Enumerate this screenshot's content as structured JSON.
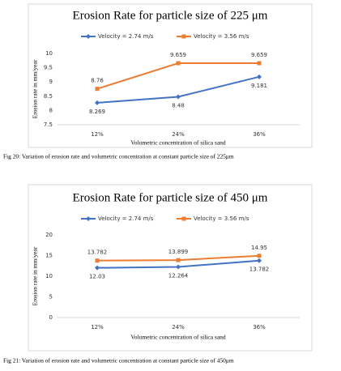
{
  "chart_data": [
    {
      "type": "line",
      "title": "Erosion Rate for particle size of 225 μm",
      "y_label": "Erosion rate in mm/year",
      "x_label": "Volumetric concentration of silica sand",
      "categories": [
        "12%",
        "24%",
        "36%"
      ],
      "series": [
        {
          "name": "Velocity = 2.74 m/s",
          "color": "#4472c4",
          "marker": "diamond",
          "values": [
            8.269,
            8.48,
            9.181
          ]
        },
        {
          "name": "Velocity = 3.56 m/s",
          "color": "#ed7d31",
          "marker": "square",
          "values": [
            8.76,
            9.659,
            9.659
          ]
        }
      ],
      "ylim": [
        7.5,
        10
      ],
      "yticks": [
        7.5,
        8,
        8.5,
        9,
        9.5,
        10
      ],
      "grid": false,
      "legend": "top"
    },
    {
      "type": "line",
      "title": "Erosion Rate for particle size of 450 μm",
      "y_label": "Erosion rate in mm/year",
      "x_label": "Volumetric concentration of silica sand",
      "categories": [
        "12%",
        "24%",
        "36%"
      ],
      "series": [
        {
          "name": "Velocity = 2.74 m/s",
          "color": "#4472c4",
          "marker": "diamond",
          "values": [
            12.03,
            12.264,
            13.782
          ]
        },
        {
          "name": "Velocity = 3.56 m/s",
          "color": "#ed7d31",
          "marker": "square",
          "values": [
            13.782,
            13.899,
            14.95
          ]
        }
      ],
      "ylim": [
        0,
        20
      ],
      "yticks": [
        0,
        5,
        10,
        15,
        20
      ],
      "grid": false,
      "legend": "top"
    }
  ],
  "captions": [
    "Fig 20: Variation of erosion rate and volumetric concentration at constant particle size of 225μm",
    "Fig 21: Variation of erosion rate and volumetric concentration at constant particle size of 450μm"
  ]
}
